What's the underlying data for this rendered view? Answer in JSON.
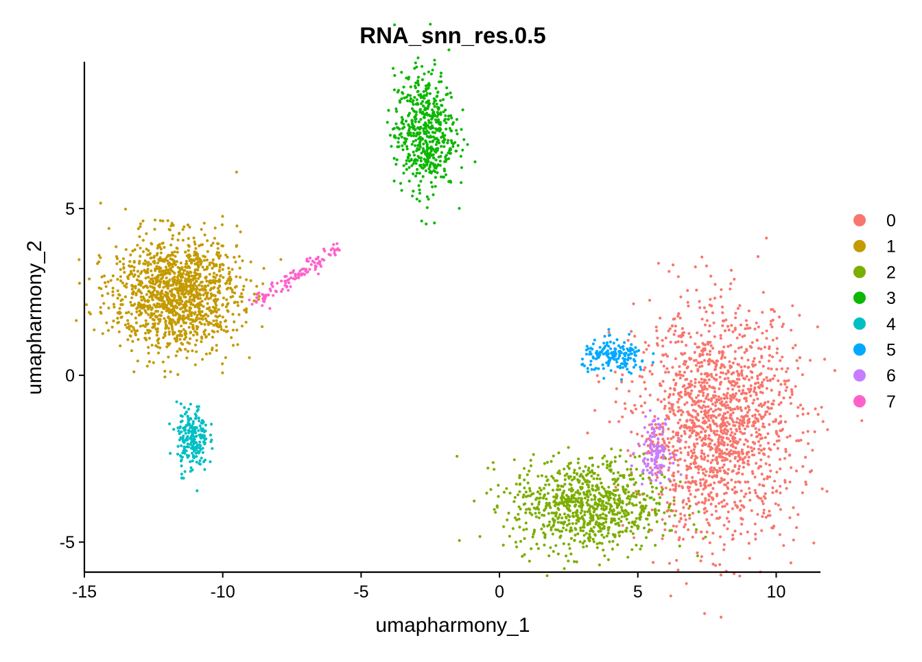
{
  "chart_data": {
    "type": "scatter",
    "title": "RNA_snn_res.0.5",
    "xlabel": "umapharmony_1",
    "ylabel": "umapharmony_2",
    "xlim": [
      -15,
      11.6
    ],
    "ylim": [
      -5.9,
      9.4
    ],
    "x_ticks": [
      -15,
      -10,
      -5,
      0,
      5,
      10
    ],
    "y_ticks": [
      -5,
      0,
      5
    ],
    "x_tick_labels": [
      "-15",
      "-10",
      "-5",
      "0",
      "5",
      "10"
    ],
    "y_tick_labels": [
      "-5",
      "0",
      "5"
    ],
    "legend_position": "right",
    "grid": false,
    "series": [
      {
        "name": "0",
        "color": "#F8766D",
        "center": [
          7.9,
          -1.5
        ],
        "spread": [
          1.45,
          1.7
        ],
        "count": 1600
      },
      {
        "name": "1",
        "color": "#C49A00",
        "center": [
          -11.7,
          2.45
        ],
        "spread": [
          1.15,
          0.85
        ],
        "count": 1300
      },
      {
        "name": "2",
        "color": "#7CAE00",
        "center": [
          3.2,
          -3.9
        ],
        "spread": [
          1.4,
          0.7
        ],
        "count": 850
      },
      {
        "name": "3",
        "color": "#0CB702",
        "center": [
          -2.7,
          7.3
        ],
        "spread": [
          0.55,
          0.9
        ],
        "count": 550
      },
      {
        "name": "4",
        "color": "#00BFC4",
        "center": [
          -11.1,
          -1.9
        ],
        "spread": [
          0.28,
          0.5
        ],
        "count": 220
      },
      {
        "name": "5",
        "color": "#00A9FF",
        "center": [
          4.2,
          0.55
        ],
        "spread": [
          0.6,
          0.25
        ],
        "count": 170
      },
      {
        "name": "6",
        "color": "#C77CFF",
        "center": [
          5.6,
          -2.2
        ],
        "spread": [
          0.3,
          0.45
        ],
        "count": 110
      },
      {
        "name": "7",
        "color": "#FF61CC",
        "center": [
          -7.0,
          2.9
        ],
        "spread": [
          1.0,
          0.35
        ],
        "count": 110
      }
    ]
  }
}
